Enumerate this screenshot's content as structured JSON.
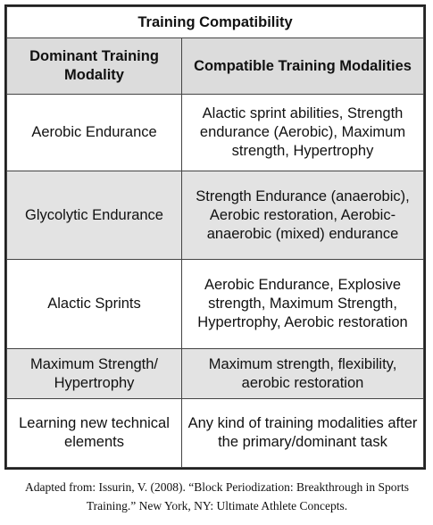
{
  "table": {
    "title": "Training Compatibility",
    "headers": [
      "Dominant Training Modality",
      "Compatible Training Modalities"
    ],
    "rows": [
      {
        "dominant": "Aerobic Endurance",
        "compatible": "Alactic sprint abilities, Strength endurance (Aerobic), Maximum strength, Hypertrophy",
        "shaded": false
      },
      {
        "dominant": "Glycolytic Endurance",
        "compatible": "Strength Endurance (anaerobic), Aerobic restoration, Aerobic-anaerobic (mixed) endurance",
        "shaded": true
      },
      {
        "dominant": "Alactic Sprints",
        "compatible": "Aerobic Endurance, Explosive strength, Maximum Strength, Hypertrophy, Aerobic restoration",
        "shaded": false
      },
      {
        "dominant": "Maximum Strength/ Hypertrophy",
        "compatible": "Maximum strength, flexibility, aerobic restoration",
        "shaded": true
      },
      {
        "dominant": "Learning new technical elements",
        "compatible": "Any kind of training modalities after the primary/dominant task",
        "shaded": false
      }
    ]
  },
  "caption": "Adapted from: Issurin, V. (2008). “Block Periodization: Breakthrough in Sports Training.” New York, NY: Ultimate Athlete Concepts.",
  "colors": {
    "header_bg": "#dcdcdc",
    "shaded_row_bg": "#e3e3e3",
    "border": "#444444"
  }
}
